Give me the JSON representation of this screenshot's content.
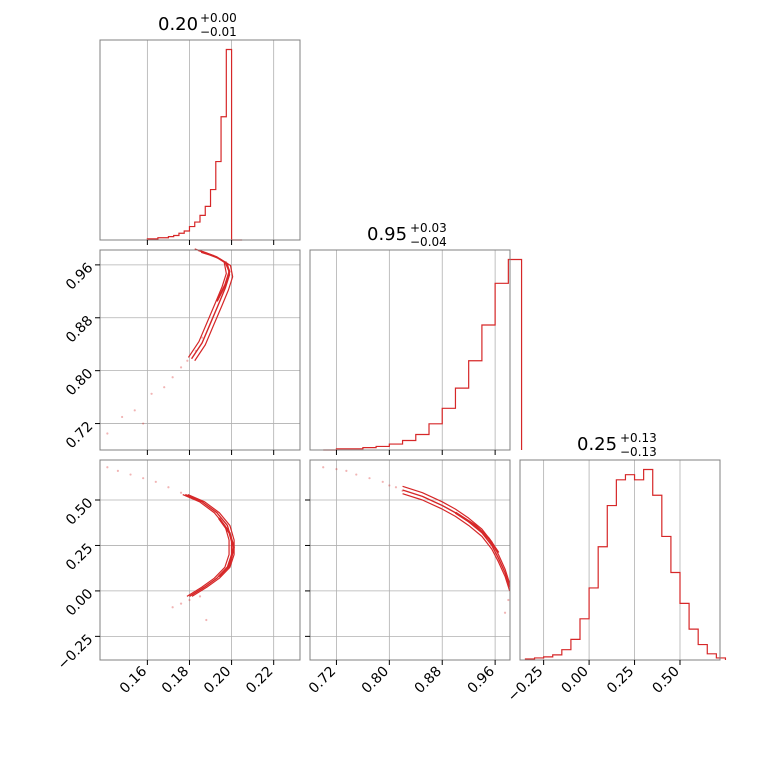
{
  "colors": {
    "accent": "#d62728",
    "grid": "#b0b0b0",
    "frame": "#808080"
  },
  "chart_data": {
    "type": "corner",
    "description_of_panels": "lower-triangle corner plot of 3 parameters",
    "params": [
      {
        "median": "0.20",
        "plus": "+0.00",
        "minus": "−0.01",
        "range": [
          0.1375,
          0.2325
        ],
        "ticks": [
          0.16,
          0.18,
          0.2,
          0.22
        ],
        "tick_labels": [
          "0.16",
          "0.18",
          "0.20",
          "0.22"
        ]
      },
      {
        "median": "0.95",
        "plus": "+0.03",
        "minus": "−0.04",
        "range": [
          0.68,
          0.9825
        ],
        "ticks": [
          0.72,
          0.8,
          0.88,
          0.96
        ],
        "tick_labels": [
          "0.72",
          "0.80",
          "0.88",
          "0.96"
        ]
      },
      {
        "median": "0.25",
        "plus": "+0.13",
        "minus": "−0.13",
        "range": [
          -0.38,
          0.72
        ],
        "ticks": [
          -0.25,
          0.0,
          0.25,
          0.5
        ],
        "tick_labels": [
          "−0.25",
          "0.00",
          "0.25",
          "0.50"
        ]
      }
    ],
    "hist1d": [
      {
        "param": 0,
        "bins_x": [
          0.16,
          0.1625,
          0.165,
          0.1675,
          0.17,
          0.1725,
          0.175,
          0.1775,
          0.18,
          0.1825,
          0.185,
          0.1875,
          0.19,
          0.1925,
          0.195,
          0.1975,
          0.2,
          0.2025
        ],
        "counts": [
          1,
          1,
          2,
          2,
          3,
          4,
          6,
          8,
          12,
          16,
          22,
          30,
          45,
          70,
          110,
          170,
          0,
          0
        ]
      },
      {
        "param": 1,
        "bins_x": [
          0.7,
          0.72,
          0.74,
          0.76,
          0.78,
          0.8,
          0.82,
          0.84,
          0.86,
          0.88,
          0.9,
          0.92,
          0.94,
          0.96,
          0.98
        ],
        "counts": [
          0,
          1,
          1,
          2,
          3,
          5,
          8,
          13,
          22,
          35,
          52,
          75,
          105,
          140,
          160
        ]
      },
      {
        "param": 2,
        "bins_x": [
          -0.35,
          -0.3,
          -0.25,
          -0.2,
          -0.15,
          -0.1,
          -0.05,
          0.0,
          0.05,
          0.1,
          0.15,
          0.2,
          0.25,
          0.3,
          0.35,
          0.4,
          0.45,
          0.5,
          0.55,
          0.6,
          0.65,
          0.7
        ],
        "counts": [
          1,
          2,
          3,
          5,
          10,
          20,
          40,
          70,
          110,
          150,
          175,
          180,
          175,
          185,
          160,
          120,
          85,
          55,
          30,
          15,
          6,
          2
        ]
      }
    ],
    "hist2d": [
      {
        "x_param": 0,
        "y_param": 1,
        "shape": "C-shaped ridge: y rises from 0.70 to 0.97 as x approaches 0.20, folding back near x≈0.197"
      },
      {
        "x_param": 0,
        "y_param": 2,
        "shape": "U-shaped ridge opening to the left, vertex near x=0.20, y=0.25"
      },
      {
        "x_param": 1,
        "y_param": 2,
        "shape": "decreasing curve from (0.70, 0.68) to (0.98, −0.05)"
      }
    ]
  }
}
